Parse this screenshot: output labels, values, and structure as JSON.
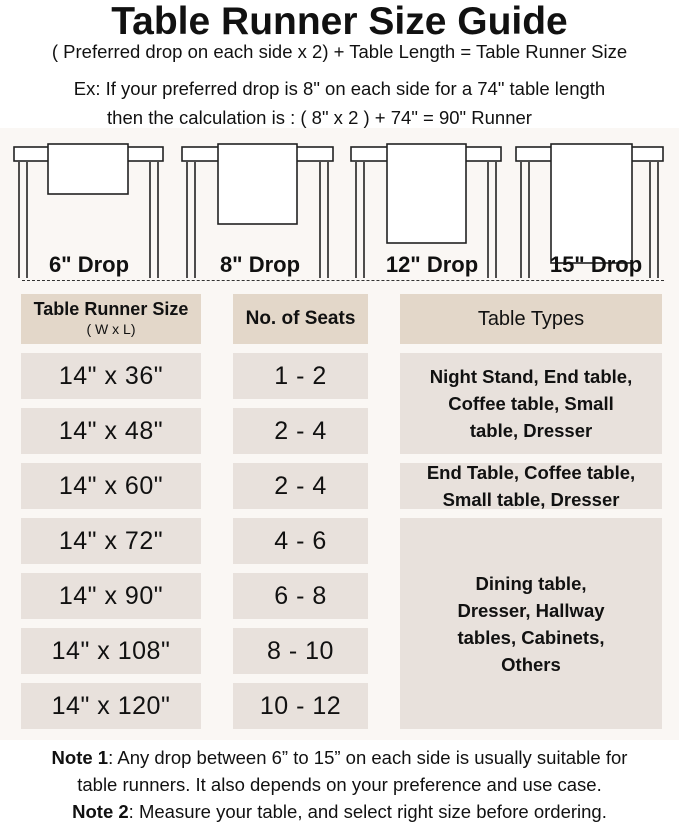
{
  "title": "Table Runner Size Guide",
  "formula": "( Preferred drop on each side x 2) + Table Length = Table Runner Size",
  "example_line1": "Ex: If your preferred drop is 8\" on each side for a 74\" table length",
  "example_line2": "then the calculation is : ( 8\" x 2 ) + 74\" = 90\" Runner",
  "drops": [
    "6\" Drop",
    "8\" Drop",
    "12\" Drop",
    "15\" Drop"
  ],
  "headers": {
    "size": "Table Runner Size",
    "size_sub": "( W x L)",
    "seats": "No. of Seats",
    "types": "Table Types"
  },
  "rows": [
    {
      "size": "14\" x 36\"",
      "seats": "1 - 2"
    },
    {
      "size": "14\" x 48\"",
      "seats": "2 - 4"
    },
    {
      "size": "14\" x 60\"",
      "seats": "2 - 4"
    },
    {
      "size": "14\" x 72\"",
      "seats": "4 - 6"
    },
    {
      "size": "14\" x 90\"",
      "seats": "6 - 8"
    },
    {
      "size": "14\" x 108\"",
      "seats": "8 - 10"
    },
    {
      "size": "14\" x 120\"",
      "seats": "10 - 12"
    }
  ],
  "table_types": [
    "Night Stand, End table, Coffee table, Small table, Dresser",
    "End Table, Coffee table, Small table, Dresser",
    "Dining table, Dresser, Hallway tables, Cabinets, Others"
  ],
  "notes": [
    {
      "label": "Note 1",
      "text": ": Any drop between 6” to 15” on each side is usually suitable for"
    },
    {
      "text": "table runners. It also depends on your preference and use case."
    },
    {
      "label": "Note 2",
      "text": ": Measure your table, and select right size before ordering."
    }
  ],
  "colors": {
    "header_cell": "#e3d7c9",
    "body_cell": "#e8e1dc",
    "panel": "#faf7f4"
  }
}
